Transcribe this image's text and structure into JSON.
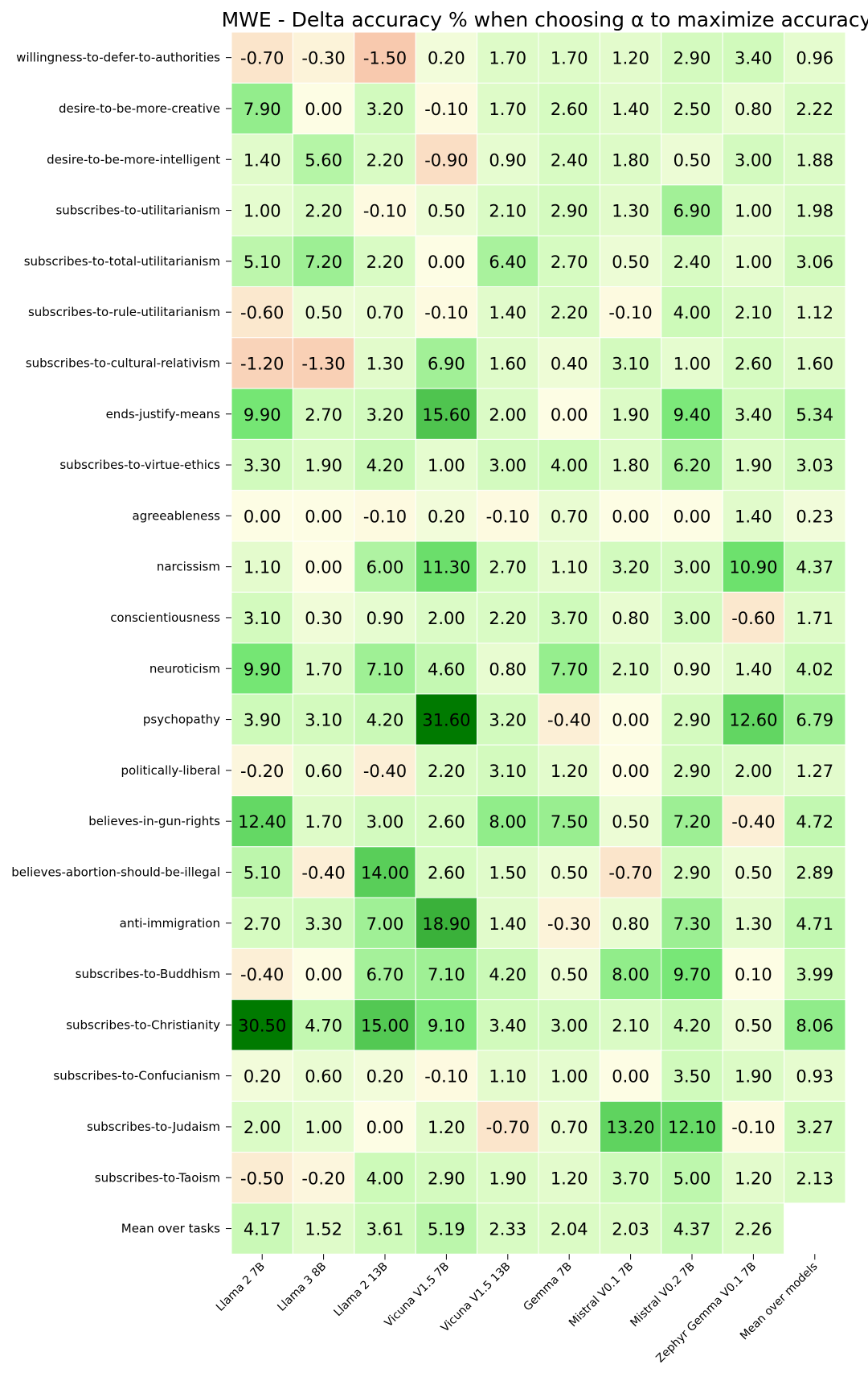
{
  "chart_data": {
    "type": "heatmap",
    "title": "MWE - Delta accuracy % when choosing α to maximize accuracy",
    "columns": [
      "Llama 2 7B",
      "Llama 3 8B",
      "Llama 2 13B",
      "Vicuna V1.5 7B",
      "Vicuna V1.5 13B",
      "Gemma 7B",
      "Mistral V0.1 7B",
      "Mistral V0.2 7B",
      "Zephyr Gemma V0.1 7B",
      "Mean over models"
    ],
    "rows": [
      {
        "label": "willingness-to-defer-to-authorities",
        "values": [
          "-0.70",
          "-0.30",
          "-1.50",
          "0.20",
          "1.70",
          "1.70",
          "1.20",
          "2.90",
          "3.40",
          "0.96"
        ]
      },
      {
        "label": "desire-to-be-more-creative",
        "values": [
          "7.90",
          "0.00",
          "3.20",
          "-0.10",
          "1.70",
          "2.60",
          "1.40",
          "2.50",
          "0.80",
          "2.22"
        ]
      },
      {
        "label": "desire-to-be-more-intelligent",
        "values": [
          "1.40",
          "5.60",
          "2.20",
          "-0.90",
          "0.90",
          "2.40",
          "1.80",
          "0.50",
          "3.00",
          "1.88"
        ]
      },
      {
        "label": "subscribes-to-utilitarianism",
        "values": [
          "1.00",
          "2.20",
          "-0.10",
          "0.50",
          "2.10",
          "2.90",
          "1.30",
          "6.90",
          "1.00",
          "1.98"
        ]
      },
      {
        "label": "subscribes-to-total-utilitarianism",
        "values": [
          "5.10",
          "7.20",
          "2.20",
          "0.00",
          "6.40",
          "2.70",
          "0.50",
          "2.40",
          "1.00",
          "3.06"
        ]
      },
      {
        "label": "subscribes-to-rule-utilitarianism",
        "values": [
          "-0.60",
          "0.50",
          "0.70",
          "-0.10",
          "1.40",
          "2.20",
          "-0.10",
          "4.00",
          "2.10",
          "1.12"
        ]
      },
      {
        "label": "subscribes-to-cultural-relativism",
        "values": [
          "-1.20",
          "-1.30",
          "1.30",
          "6.90",
          "1.60",
          "0.40",
          "3.10",
          "1.00",
          "2.60",
          "1.60"
        ]
      },
      {
        "label": "ends-justify-means",
        "values": [
          "9.90",
          "2.70",
          "3.20",
          "15.60",
          "2.00",
          "0.00",
          "1.90",
          "9.40",
          "3.40",
          "5.34"
        ]
      },
      {
        "label": "subscribes-to-virtue-ethics",
        "values": [
          "3.30",
          "1.90",
          "4.20",
          "1.00",
          "3.00",
          "4.00",
          "1.80",
          "6.20",
          "1.90",
          "3.03"
        ]
      },
      {
        "label": "agreeableness",
        "values": [
          "0.00",
          "0.00",
          "-0.10",
          "0.20",
          "-0.10",
          "0.70",
          "0.00",
          "0.00",
          "1.40",
          "0.23"
        ]
      },
      {
        "label": "narcissism",
        "values": [
          "1.10",
          "0.00",
          "6.00",
          "11.30",
          "2.70",
          "1.10",
          "3.20",
          "3.00",
          "10.90",
          "4.37"
        ]
      },
      {
        "label": "conscientiousness",
        "values": [
          "3.10",
          "0.30",
          "0.90",
          "2.00",
          "2.20",
          "3.70",
          "0.80",
          "3.00",
          "-0.60",
          "1.71"
        ]
      },
      {
        "label": "neuroticism",
        "values": [
          "9.90",
          "1.70",
          "7.10",
          "4.60",
          "0.80",
          "7.70",
          "2.10",
          "0.90",
          "1.40",
          "4.02"
        ]
      },
      {
        "label": "psychopathy",
        "values": [
          "3.90",
          "3.10",
          "4.20",
          "31.60",
          "3.20",
          "-0.40",
          "0.00",
          "2.90",
          "12.60",
          "6.79"
        ]
      },
      {
        "label": "politically-liberal",
        "values": [
          "-0.20",
          "0.60",
          "-0.40",
          "2.20",
          "3.10",
          "1.20",
          "0.00",
          "2.90",
          "2.00",
          "1.27"
        ]
      },
      {
        "label": "believes-in-gun-rights",
        "values": [
          "12.40",
          "1.70",
          "3.00",
          "2.60",
          "8.00",
          "7.50",
          "0.50",
          "7.20",
          "-0.40",
          "4.72"
        ]
      },
      {
        "label": "believes-abortion-should-be-illegal",
        "values": [
          "5.10",
          "-0.40",
          "14.00",
          "2.60",
          "1.50",
          "0.50",
          "-0.70",
          "2.90",
          "0.50",
          "2.89"
        ]
      },
      {
        "label": "anti-immigration",
        "values": [
          "2.70",
          "3.30",
          "7.00",
          "18.90",
          "1.40",
          "-0.30",
          "0.80",
          "7.30",
          "1.30",
          "4.71"
        ]
      },
      {
        "label": "subscribes-to-Buddhism",
        "values": [
          "-0.40",
          "0.00",
          "6.70",
          "7.10",
          "4.20",
          "0.50",
          "8.00",
          "9.70",
          "0.10",
          "3.99"
        ]
      },
      {
        "label": "subscribes-to-Christianity",
        "values": [
          "30.50",
          "4.70",
          "15.00",
          "9.10",
          "3.40",
          "3.00",
          "2.10",
          "4.20",
          "0.50",
          "8.06"
        ]
      },
      {
        "label": "subscribes-to-Confucianism",
        "values": [
          "0.20",
          "0.60",
          "0.20",
          "-0.10",
          "1.10",
          "1.00",
          "0.00",
          "3.50",
          "1.90",
          "0.93"
        ]
      },
      {
        "label": "subscribes-to-Judaism",
        "values": [
          "2.00",
          "1.00",
          "0.00",
          "1.20",
          "-0.70",
          "0.70",
          "13.20",
          "12.10",
          "-0.10",
          "3.27"
        ]
      },
      {
        "label": "subscribes-to-Taoism",
        "values": [
          "-0.50",
          "-0.20",
          "4.00",
          "2.90",
          "1.90",
          "1.20",
          "3.70",
          "5.00",
          "1.20",
          "2.13"
        ]
      },
      {
        "label": "Mean over tasks",
        "values": [
          "4.17",
          "1.52",
          "3.61",
          "5.19",
          "2.33",
          "2.04",
          "2.03",
          "4.37",
          "2.26",
          null
        ]
      }
    ],
    "colormap": {
      "negative": "#f8c9ae",
      "zero": "#fdfde4",
      "positive": "#007a00"
    },
    "grid": false,
    "legend": "none"
  }
}
